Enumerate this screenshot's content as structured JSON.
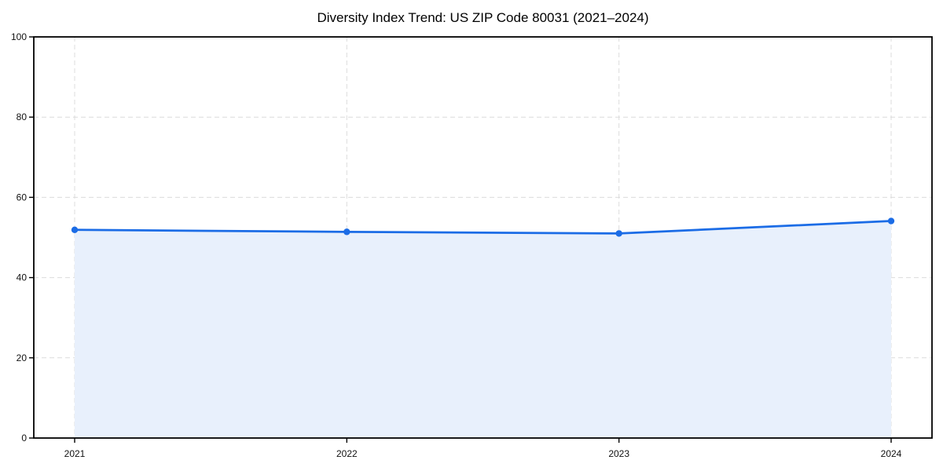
{
  "figure": {
    "background": "#ffffff"
  },
  "chart_data": {
    "type": "area",
    "title": "Diversity Index Trend: US ZIP Code 80031 (2021–2024)",
    "categories": [
      "2021",
      "2022",
      "2023",
      "2024"
    ],
    "series": [
      {
        "name": "Diversity Index",
        "values": [
          51.9,
          51.4,
          51.0,
          54.1
        ]
      }
    ],
    "xlabel": "",
    "ylabel": "",
    "ylim": [
      0,
      100
    ],
    "yticks": [
      0,
      20,
      40,
      60,
      80,
      100
    ],
    "grid": "dashed, both axes",
    "legend": "none",
    "marker": "filled circle",
    "fill_to_zero": true,
    "colors": {
      "line": "#1b6ce6",
      "marker": "#1b6ce6",
      "fill": "#e8f0fc",
      "grid": "#dcdcdc",
      "spine": "#000000",
      "tick_label": "#111111",
      "title": "#000000",
      "background": "#ffffff"
    }
  }
}
